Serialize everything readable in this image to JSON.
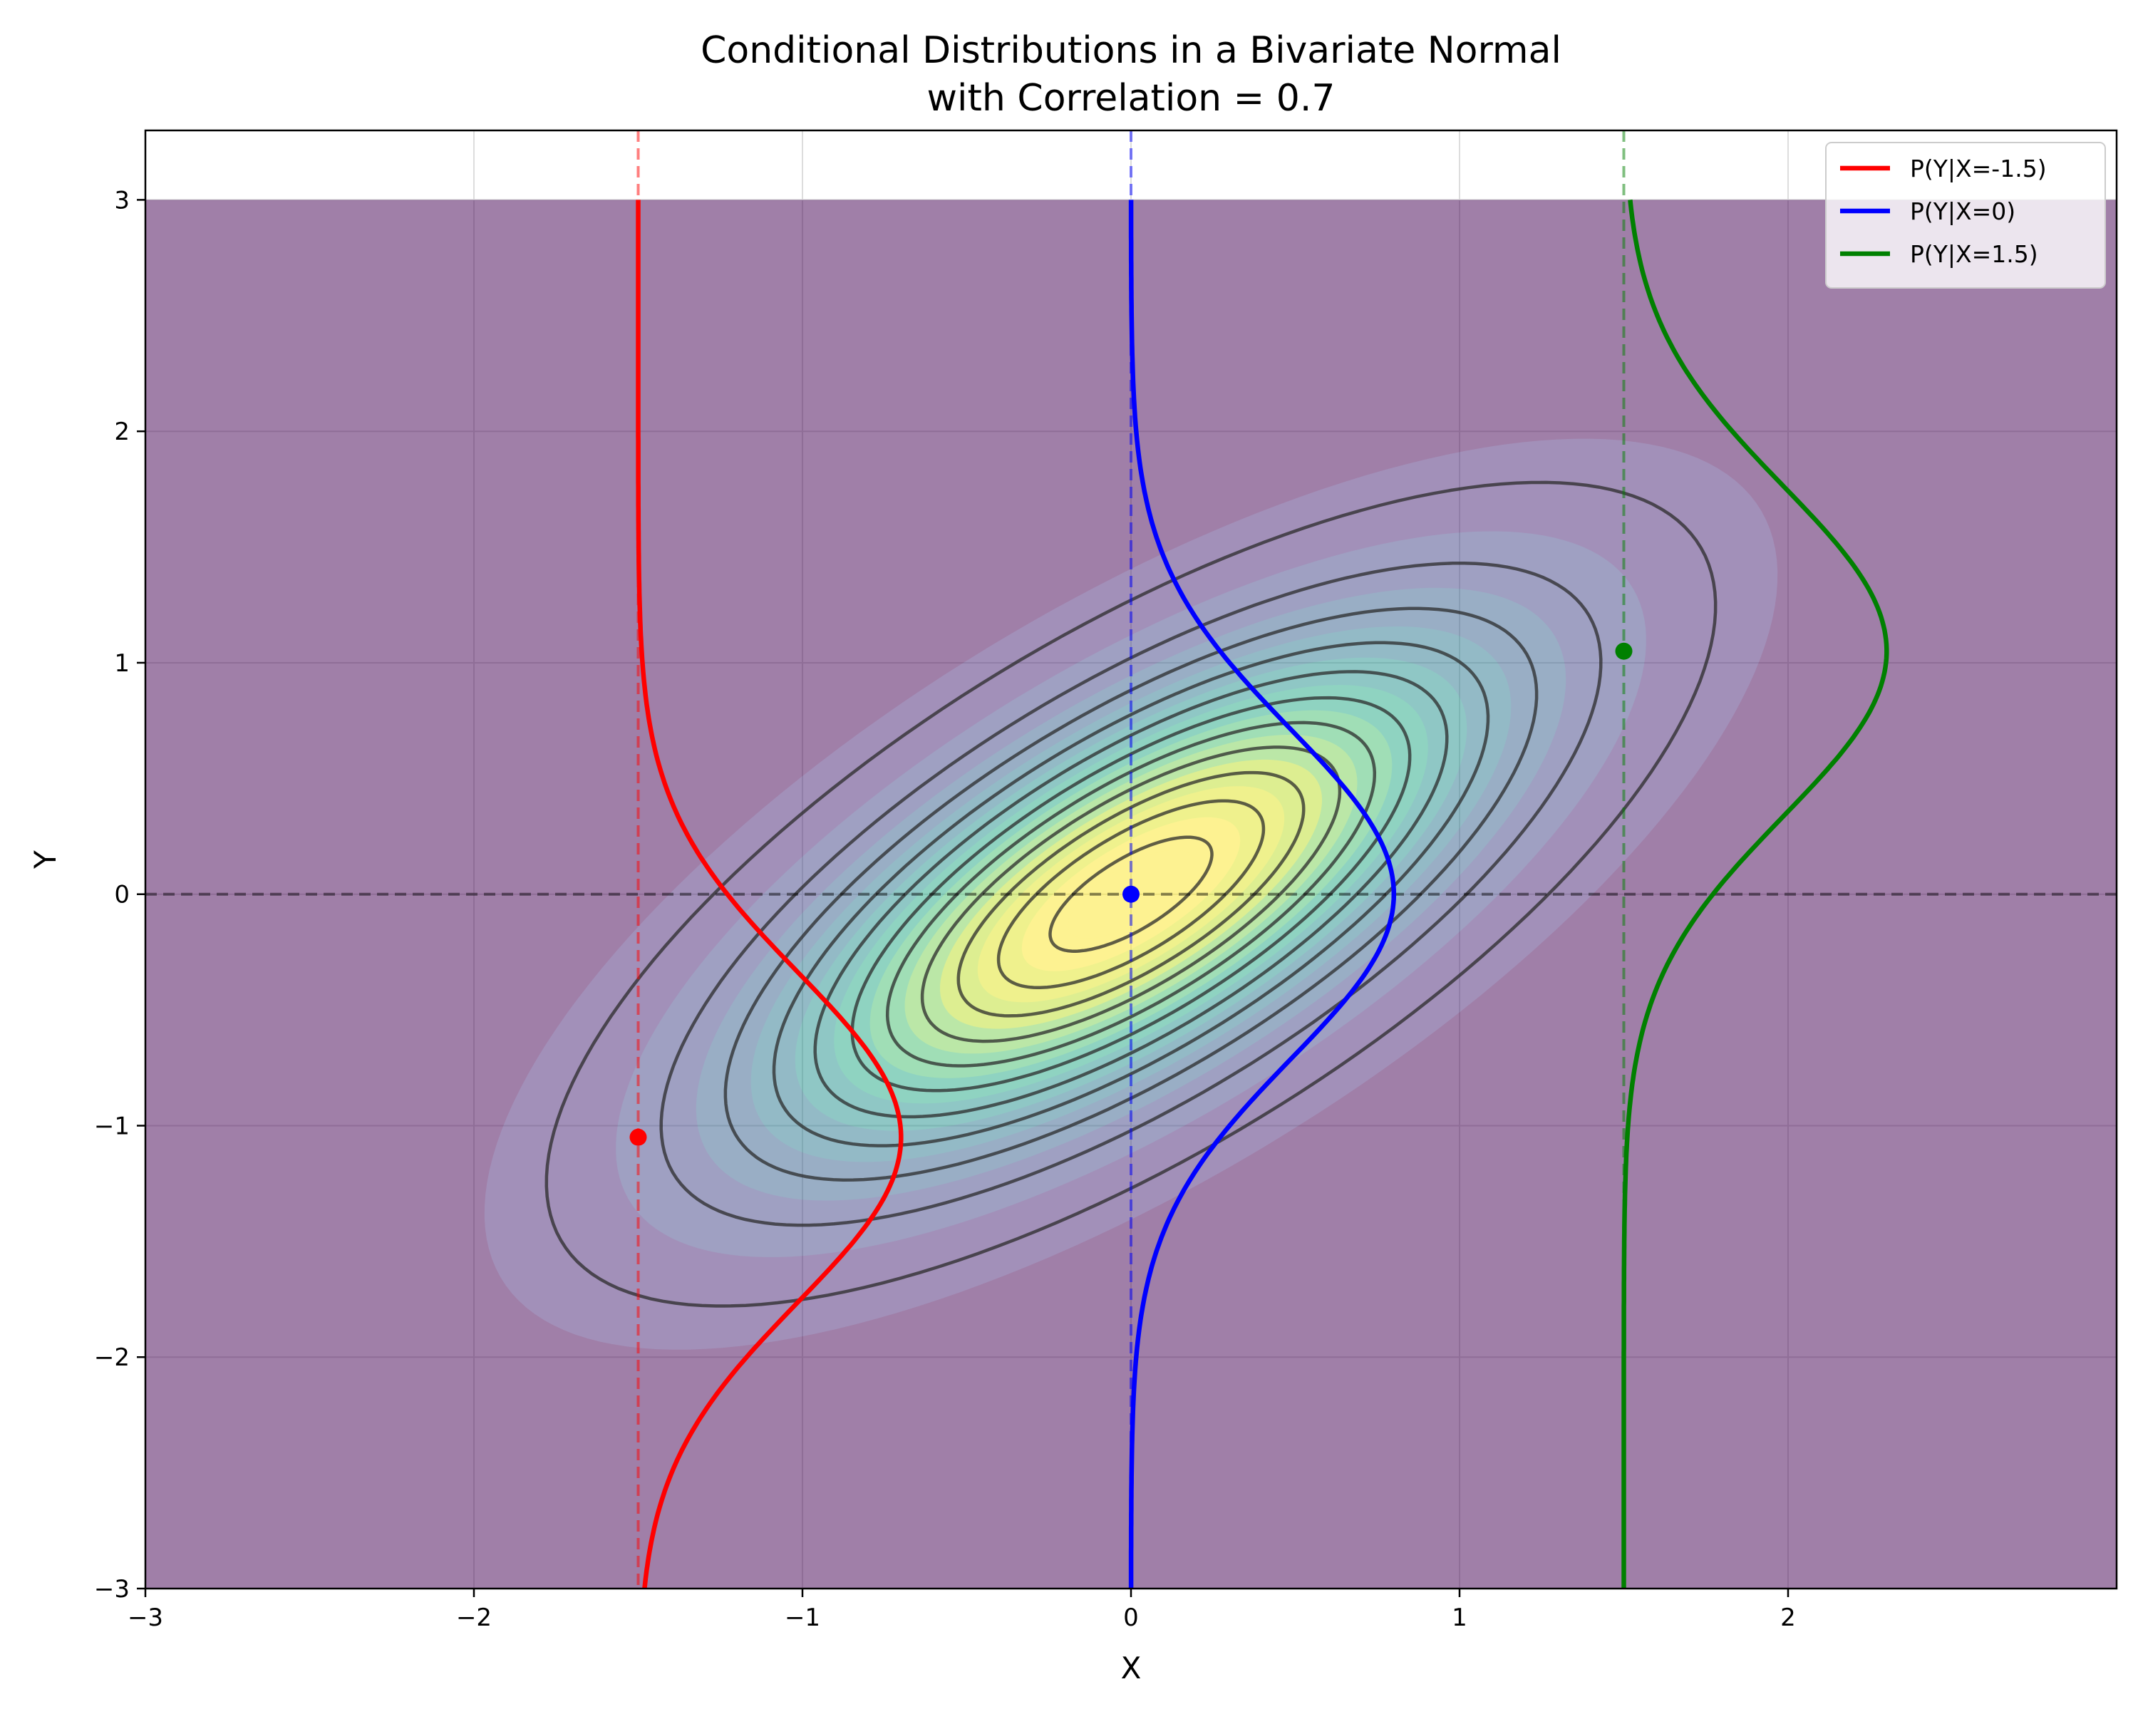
{
  "chart_data": {
    "type": "contour",
    "title": "Conditional Distributions in a Bivariate Normal",
    "subtitle": "with Correlation = 0.7",
    "xlabel": "X",
    "ylabel": "Y",
    "xlim": [
      -3,
      3
    ],
    "ylim": [
      -3,
      3.3
    ],
    "x_ticks": [
      -3,
      -2,
      -1,
      0,
      1,
      2
    ],
    "x_tick_labels": [
      "−3",
      "−2",
      "−1",
      "0",
      "1",
      "2"
    ],
    "y_ticks": [
      -3,
      -2,
      -1,
      0,
      1,
      2,
      3
    ],
    "y_tick_labels": [
      "−3",
      "−2",
      "−1",
      "0",
      "1",
      "2",
      "3"
    ],
    "grid": true,
    "legend_position": "top-right",
    "correlation": 0.7,
    "density_region": {
      "x": [
        -3,
        3
      ],
      "y": [
        -3,
        3
      ]
    },
    "contour_levels": [
      0.01,
      0.03,
      0.05,
      0.07,
      0.09,
      0.11,
      0.13,
      0.15,
      0.17,
      0.19,
      0.21
    ],
    "filled_levels": [
      0.005,
      0.02,
      0.04,
      0.06,
      0.08,
      0.1,
      0.12,
      0.14,
      0.16,
      0.18,
      0.2,
      0.215
    ],
    "filled_colors": [
      "#440154",
      "#482475",
      "#414487",
      "#355f8d",
      "#2a788e",
      "#21918c",
      "#22a884",
      "#44bf70",
      "#7ad151",
      "#bddf26",
      "#e1e51e",
      "#fde725"
    ],
    "contour_color": "#2b2b2b",
    "horizontal_reference_y": 0,
    "series": [
      {
        "name": "P(Y|X=-1.5)",
        "x_cond": -1.5,
        "cond_mean": -1.05,
        "cond_sd": 0.714,
        "color": "#ff0000"
      },
      {
        "name": "P(Y|X=0)",
        "x_cond": 0,
        "cond_mean": 0,
        "cond_sd": 0.714,
        "color": "#0000ff"
      },
      {
        "name": "P(Y|X=1.5)",
        "x_cond": 1.5,
        "cond_mean": 1.05,
        "cond_sd": 0.714,
        "color": "#008000"
      }
    ],
    "curve_peak_width_x": 0.8
  }
}
